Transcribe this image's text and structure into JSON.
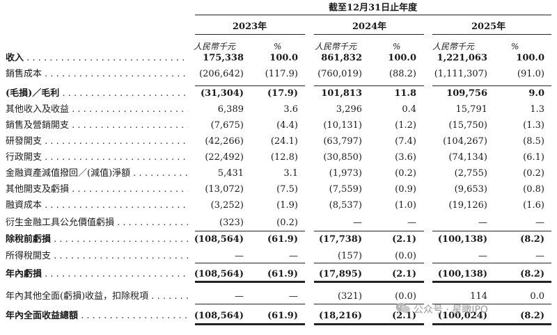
{
  "header": {
    "period_title": "截至12月31日止年度",
    "years": [
      "2023年",
      "2024年",
      "2025年"
    ],
    "unit_currency": "人民幣千元",
    "unit_percent": "%"
  },
  "rows": [
    {
      "label": "收入",
      "bold": true,
      "v": [
        "175,338",
        "100.0",
        "861,832",
        "100.0",
        "1,221,063",
        "100.0"
      ]
    },
    {
      "label": "銷售成本",
      "bold": false,
      "v": [
        "(206,642)",
        "(117.9)",
        "(760,019)",
        "(88.2)",
        "(1,111,307)",
        "(91.0)"
      ]
    },
    {
      "label": "(毛損)／毛利",
      "bold": true,
      "v": [
        "(31,304)",
        "(17.9)",
        "101,813",
        "11.8",
        "109,756",
        "9.0"
      ]
    },
    {
      "label": "其他收入及收益",
      "bold": false,
      "v": [
        "6,389",
        "3.6",
        "3,296",
        "0.4",
        "15,791",
        "1.3"
      ]
    },
    {
      "label": "銷售及營銷開支",
      "bold": false,
      "v": [
        "(7,675)",
        "(4.4)",
        "(10,131)",
        "(1.2)",
        "(15,750)",
        "(1.3)"
      ]
    },
    {
      "label": "研發開支",
      "bold": false,
      "v": [
        "(42,266)",
        "(24.1)",
        "(63,797)",
        "(7.4)",
        "(104,267)",
        "(8.5)"
      ]
    },
    {
      "label": "行政開支",
      "bold": false,
      "v": [
        "(22,492)",
        "(12.8)",
        "(30,850)",
        "(3.6)",
        "(74,134)",
        "(6.1)"
      ]
    },
    {
      "label": "金融資產減值撥回／(減值)淨額",
      "bold": false,
      "v": [
        "5,431",
        "3.1",
        "(1,973)",
        "(0.2)",
        "(2,755)",
        "(0.2)"
      ]
    },
    {
      "label": "其他開支及虧損",
      "bold": false,
      "v": [
        "(13,072)",
        "(7.5)",
        "(7,559)",
        "(0.9)",
        "(9,653)",
        "(0.8)"
      ]
    },
    {
      "label": "融資成本",
      "bold": false,
      "v": [
        "(3,252)",
        "(1.9)",
        "(8,537)",
        "(1.0)",
        "(19,126)",
        "(1.6)"
      ]
    },
    {
      "label": "衍生金融工具公允價值虧損",
      "bold": false,
      "v": [
        "(323)",
        "(0.2)",
        "—",
        "—",
        "—",
        "—"
      ]
    },
    {
      "label": "除稅前虧損",
      "bold": true,
      "v": [
        "(108,564)",
        "(61.9)",
        "(17,738)",
        "(2.1)",
        "(100,138)",
        "(8.2)"
      ]
    },
    {
      "label": "所得稅開支",
      "bold": false,
      "v": [
        "—",
        "—",
        "(157)",
        "(0.0)",
        "—",
        "—"
      ]
    },
    {
      "label": "年內虧損",
      "bold": true,
      "v": [
        "(108,564)",
        "(61.9)",
        "(17,895)",
        "(2.1)",
        "(100,138)",
        "(8.2)"
      ]
    },
    {
      "label": "年內其他全面(虧損)收益，扣除稅項",
      "bold": false,
      "v": [
        "—",
        "—",
        "(321)",
        "(0.0)",
        "114",
        "0.0"
      ]
    },
    {
      "label": "年內全面收益總額",
      "bold": true,
      "v": [
        "(108,564)",
        "(61.9)",
        "(18,216)",
        "(2.1)",
        "(100,024)",
        "(8.2)"
      ]
    }
  ],
  "watermark": {
    "text": "公众号 · 星瞰IPO",
    "icon": "wechat-icon"
  }
}
